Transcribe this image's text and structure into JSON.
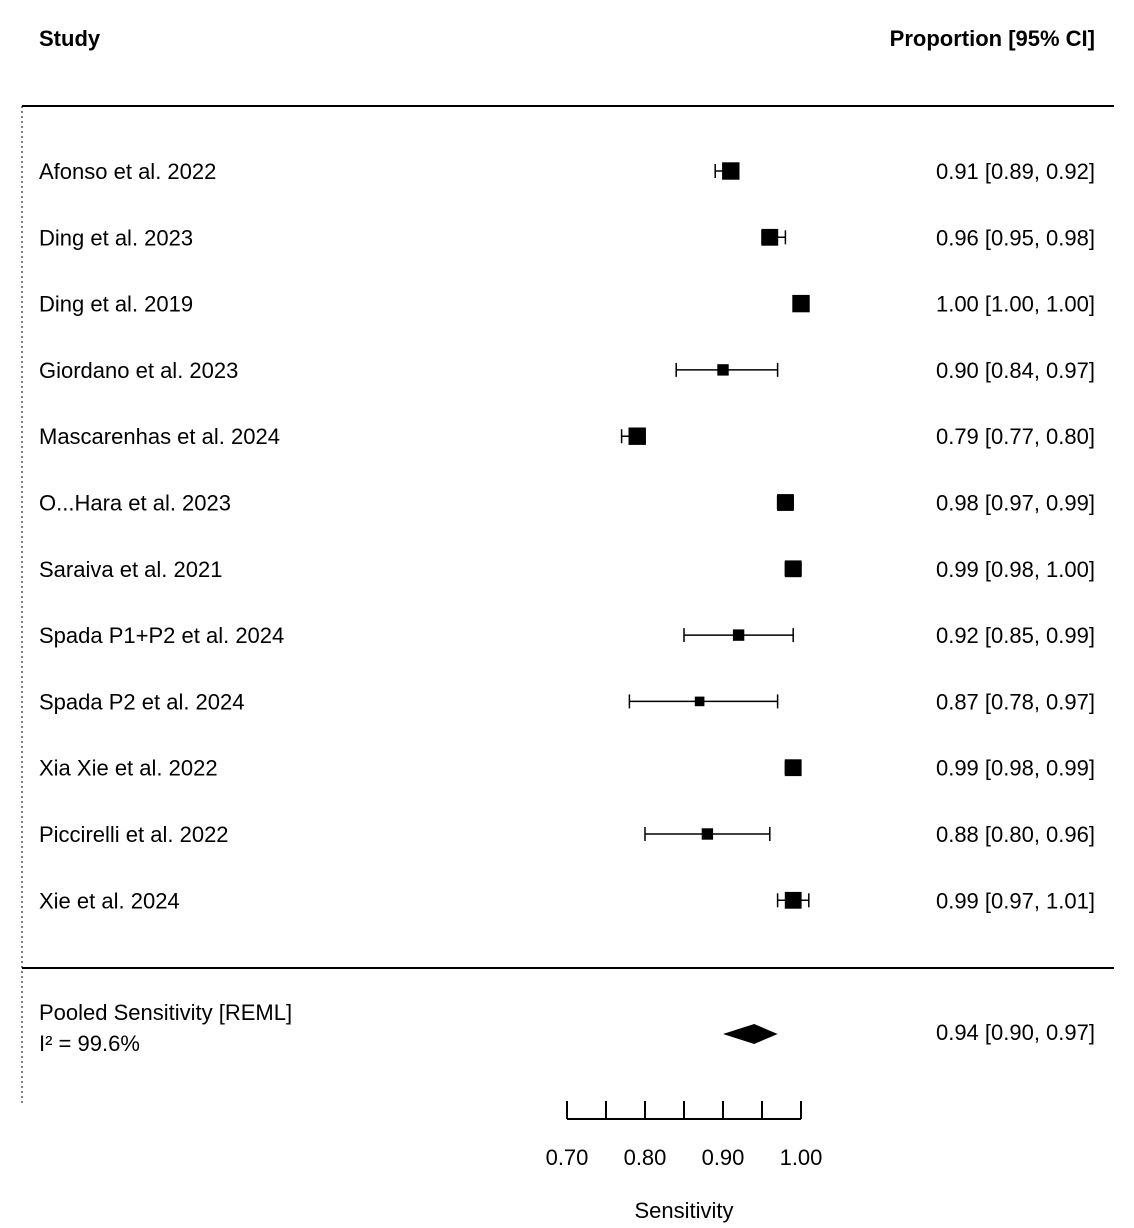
{
  "chart_data": {
    "type": "forest",
    "header": {
      "study": "Study",
      "estimate": "Proportion [95% CI]"
    },
    "studies": [
      {
        "label": "Afonso et al. 2022",
        "estimate": 0.91,
        "ci_low": 0.89,
        "ci_high": 0.92,
        "ci_text": "0.91 [0.89, 0.92]",
        "weight": 0.95
      },
      {
        "label": "Ding et al. 2023",
        "estimate": 0.96,
        "ci_low": 0.95,
        "ci_high": 0.98,
        "ci_text": "0.96 [0.95, 0.98]",
        "weight": 0.9
      },
      {
        "label": "Ding et al. 2019",
        "estimate": 1.0,
        "ci_low": 1.0,
        "ci_high": 1.0,
        "ci_text": "1.00 [1.00, 1.00]",
        "weight": 0.95
      },
      {
        "label": "Giordano et al. 2023",
        "estimate": 0.9,
        "ci_low": 0.84,
        "ci_high": 0.97,
        "ci_text": "0.90 [0.84, 0.97]",
        "weight": 0.45
      },
      {
        "label": "Mascarenhas et al. 2024",
        "estimate": 0.79,
        "ci_low": 0.77,
        "ci_high": 0.8,
        "ci_text": "0.79 [0.77, 0.80]",
        "weight": 0.95
      },
      {
        "label": "O...Hara et al. 2023",
        "estimate": 0.98,
        "ci_low": 0.97,
        "ci_high": 0.99,
        "ci_text": "0.98 [0.97, 0.99]",
        "weight": 0.9
      },
      {
        "label": "Saraiva et al. 2021",
        "estimate": 0.99,
        "ci_low": 0.98,
        "ci_high": 1.0,
        "ci_text": "0.99 [0.98, 1.00]",
        "weight": 0.9
      },
      {
        "label": "Spada P1+P2 et al. 2024",
        "estimate": 0.92,
        "ci_low": 0.85,
        "ci_high": 0.99,
        "ci_text": "0.92 [0.85, 0.99]",
        "weight": 0.45
      },
      {
        "label": "Spada P2 et al. 2024",
        "estimate": 0.87,
        "ci_low": 0.78,
        "ci_high": 0.97,
        "ci_text": "0.87 [0.78, 0.97]",
        "weight": 0.3
      },
      {
        "label": "Xia Xie et al. 2022",
        "estimate": 0.99,
        "ci_low": 0.98,
        "ci_high": 0.99,
        "ci_text": "0.99 [0.98, 0.99]",
        "weight": 0.9
      },
      {
        "label": "Piccirelli et al. 2022",
        "estimate": 0.88,
        "ci_low": 0.8,
        "ci_high": 0.96,
        "ci_text": "0.88 [0.80, 0.96]",
        "weight": 0.45
      },
      {
        "label": "Xie et al. 2024",
        "estimate": 0.99,
        "ci_low": 0.97,
        "ci_high": 1.01,
        "ci_text": "0.99 [0.97, 1.01]",
        "weight": 0.9
      }
    ],
    "pooled": {
      "label": "Pooled Sensitivity [REML]",
      "heterogeneity": "I² = 99.6%",
      "estimate": 0.94,
      "ci_low": 0.9,
      "ci_high": 0.97,
      "ci_text": "0.94 [0.90, 0.97]"
    },
    "x_axis": {
      "label": "Sensitivity",
      "range": [
        0.7,
        1.0
      ],
      "ticks": [
        0.7,
        0.75,
        0.8,
        0.85,
        0.9,
        0.95,
        1.0
      ],
      "tick_labels": [
        {
          "value": 0.7,
          "text": "0.70"
        },
        {
          "value": 0.8,
          "text": "0.80"
        },
        {
          "value": 0.9,
          "text": "0.90"
        },
        {
          "value": 1.0,
          "text": "1.00"
        }
      ]
    }
  }
}
